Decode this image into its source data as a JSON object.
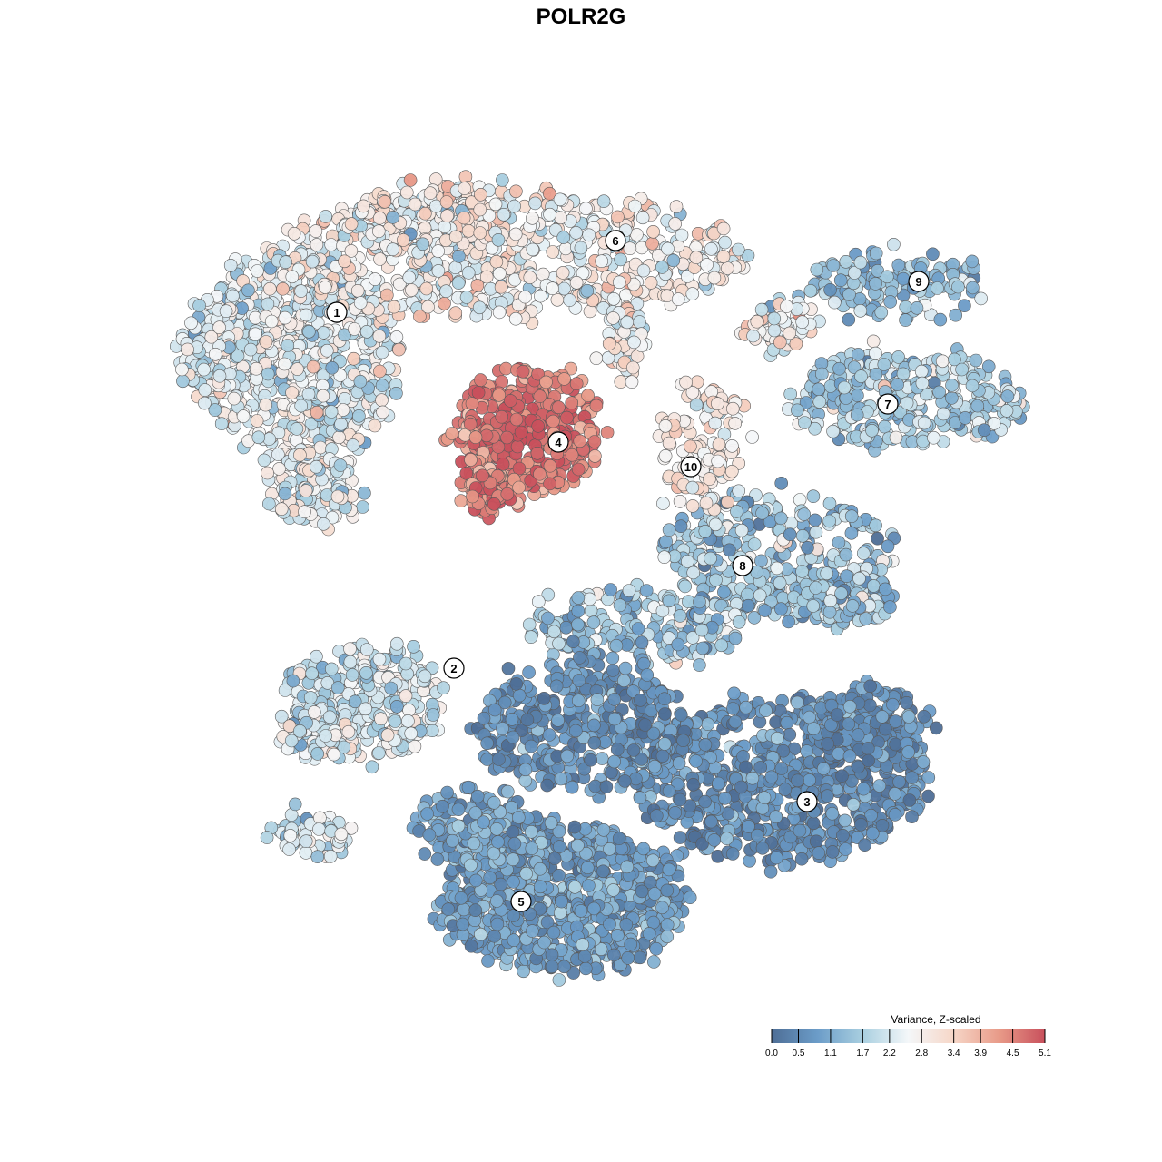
{
  "chart_data": {
    "type": "scatter",
    "title": "POLR2G",
    "legend": {
      "title": "Variance, Z-scaled",
      "ticks": [
        "0.0",
        "0.5",
        "1.1",
        "1.7",
        "2.2",
        "2.8",
        "3.4",
        "3.9",
        "4.5",
        "5.1"
      ],
      "range": [
        0.0,
        5.1
      ],
      "placement": "bottom-right",
      "colors": [
        "#4e6e96",
        "#6b9cc8",
        "#a9cfe0",
        "#f4f7f9",
        "#f6d6c7",
        "#e89a88",
        "#c8505c"
      ]
    },
    "clusters": [
      {
        "label": "1",
        "mean": 2.3
      },
      {
        "label": "2",
        "mean": 2.1
      },
      {
        "label": "3",
        "mean": 0.6
      },
      {
        "label": "4",
        "mean": 4.3
      },
      {
        "label": "5",
        "mean": 0.9
      },
      {
        "label": "6",
        "mean": 2.7
      },
      {
        "label": "7",
        "mean": 1.7
      },
      {
        "label": "8",
        "mean": 1.5
      },
      {
        "label": "9",
        "mean": 1.4
      },
      {
        "label": "10",
        "mean": 2.9
      }
    ]
  }
}
